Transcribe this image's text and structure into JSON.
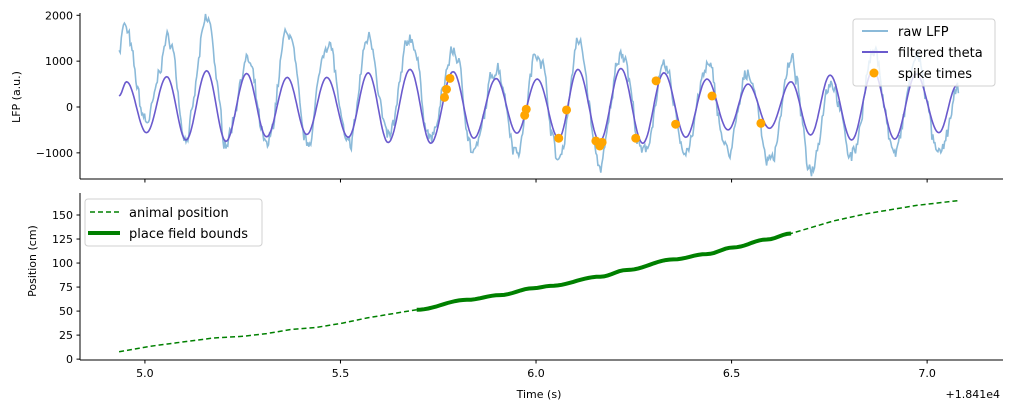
{
  "chart_data": [
    {
      "type": "line",
      "ylabel": "LFP (a.u.)",
      "xlim": [
        4.834,
        7.194
      ],
      "ylim": [
        -1570,
        2050
      ],
      "yticks": [
        -1000,
        0,
        1000,
        2000
      ],
      "ytick_labels": [
        "−1000",
        "0",
        "1000",
        "2000"
      ],
      "xticks": [
        5.0,
        5.5,
        6.0,
        6.5,
        7.0
      ],
      "legend": {
        "placement": "top-right",
        "entries": [
          "raw LFP",
          "filtered theta",
          "spike times"
        ]
      },
      "colors": {
        "raw": "#8bbad9",
        "theta": "#6a5acd",
        "spikes": "#ffa500"
      },
      "series": [
        {
          "name": "filtered theta",
          "extrema": [
            [
              4.934,
              240
            ],
            [
              4.953,
              550
            ],
            [
              5.004,
              -560
            ],
            [
              5.056,
              660
            ],
            [
              5.105,
              -720
            ],
            [
              5.158,
              790
            ],
            [
              5.207,
              -750
            ],
            [
              5.26,
              730
            ],
            [
              5.311,
              -650
            ],
            [
              5.364,
              645
            ],
            [
              5.414,
              -600
            ],
            [
              5.465,
              645
            ],
            [
              5.52,
              -660
            ],
            [
              5.571,
              745
            ],
            [
              5.622,
              -775
            ],
            [
              5.678,
              820
            ],
            [
              5.731,
              -790
            ],
            [
              5.788,
              770
            ],
            [
              5.841,
              -680
            ],
            [
              5.898,
              620
            ],
            [
              5.951,
              -570
            ],
            [
              6.003,
              610
            ],
            [
              6.058,
              -680
            ],
            [
              6.107,
              820
            ],
            [
              6.163,
              -750
            ],
            [
              6.217,
              840
            ],
            [
              6.273,
              -790
            ],
            [
              6.327,
              745
            ],
            [
              6.383,
              -660
            ],
            [
              6.437,
              610
            ],
            [
              6.491,
              -500
            ],
            [
              6.542,
              500
            ],
            [
              6.597,
              -465
            ],
            [
              6.652,
              550
            ],
            [
              6.702,
              -610
            ],
            [
              6.752,
              695
            ],
            [
              6.807,
              -720
            ],
            [
              6.862,
              800
            ],
            [
              6.917,
              -700
            ],
            [
              6.972,
              720
            ],
            [
              7.03,
              -560
            ],
            [
              7.077,
              480
            ]
          ]
        },
        {
          "name": "raw LFP",
          "extrema": [
            [
              4.934,
              1300
            ],
            [
              4.945,
              1750
            ],
            [
              5.004,
              -300
            ],
            [
              5.062,
              1490
            ],
            [
              5.105,
              -650
            ],
            [
              5.16,
              1890
            ],
            [
              5.207,
              -720
            ],
            [
              5.262,
              1000
            ],
            [
              5.311,
              -900
            ],
            [
              5.366,
              1660
            ],
            [
              5.414,
              -800
            ],
            [
              5.467,
              1450
            ],
            [
              5.52,
              -900
            ],
            [
              5.573,
              1560
            ],
            [
              5.622,
              -700
            ],
            [
              5.68,
              1540
            ],
            [
              5.731,
              -700
            ],
            [
              5.79,
              1230
            ],
            [
              5.841,
              -1000
            ],
            [
              5.9,
              900
            ],
            [
              5.951,
              -950
            ],
            [
              6.005,
              1240
            ],
            [
              6.058,
              -1160
            ],
            [
              6.109,
              1390
            ],
            [
              6.163,
              -1280
            ],
            [
              6.219,
              1260
            ],
            [
              6.273,
              -1050
            ],
            [
              6.329,
              800
            ],
            [
              6.383,
              -950
            ],
            [
              6.439,
              870
            ],
            [
              6.491,
              -1000
            ],
            [
              6.544,
              770
            ],
            [
              6.597,
              -1200
            ],
            [
              6.654,
              960
            ],
            [
              6.702,
              -1330
            ],
            [
              6.754,
              590
            ],
            [
              6.807,
              -1050
            ],
            [
              6.864,
              1170
            ],
            [
              6.917,
              -1000
            ],
            [
              6.974,
              1060
            ],
            [
              7.03,
              -1100
            ],
            [
              7.08,
              300
            ]
          ]
        },
        {
          "name": "spike times",
          "type": "scatter",
          "points": [
            [
              5.766,
              210
            ],
            [
              5.771,
              385
            ],
            [
              5.78,
              625
            ],
            [
              5.971,
              -180
            ],
            [
              5.975,
              -50
            ],
            [
              6.058,
              -680
            ],
            [
              6.078,
              -65
            ],
            [
              6.153,
              -740
            ],
            [
              6.163,
              -850
            ],
            [
              6.169,
              -770
            ],
            [
              6.255,
              -680
            ],
            [
              6.307,
              570
            ],
            [
              6.357,
              -375
            ],
            [
              6.45,
              240
            ],
            [
              6.575,
              -355
            ]
          ]
        }
      ]
    },
    {
      "type": "line",
      "xlabel": "Time (s)",
      "ylabel": "Position (cm)",
      "x_offset_label": "+1.841e4",
      "xlim": [
        4.834,
        7.194
      ],
      "ylim": [
        -0.9,
        172.9
      ],
      "yticks": [
        0,
        25,
        50,
        75,
        100,
        125,
        150
      ],
      "xticks": [
        5.0,
        5.5,
        6.0,
        6.5,
        7.0
      ],
      "xtick_labels": [
        "5.0",
        "5.5",
        "6.0",
        "6.5",
        "7.0"
      ],
      "legend": {
        "placement": "top-left",
        "entries": [
          "animal position",
          "place field bounds"
        ]
      },
      "colors": {
        "position": "#008000"
      },
      "place_field": [
        5.695,
        6.652
      ],
      "series": [
        {
          "name": "animal position",
          "points": [
            [
              4.934,
              7.6
            ],
            [
              5.013,
              13.4
            ],
            [
              5.081,
              17
            ],
            [
              5.175,
              22
            ],
            [
              5.251,
              23.8
            ],
            [
              5.311,
              26.6
            ],
            [
              5.371,
              30.7
            ],
            [
              5.439,
              33
            ],
            [
              5.507,
              37.6
            ],
            [
              5.567,
              42.8
            ],
            [
              5.695,
              51.4
            ],
            [
              5.823,
              61.7
            ],
            [
              5.908,
              66.6
            ],
            [
              5.993,
              73.8
            ],
            [
              6.036,
              76.2
            ],
            [
              6.164,
              85.8
            ],
            [
              6.232,
              92.8
            ],
            [
              6.351,
              103.8
            ],
            [
              6.436,
              109.3
            ],
            [
              6.504,
              116.2
            ],
            [
              6.59,
              124.5
            ],
            [
              6.652,
              130.7
            ],
            [
              6.76,
              143.8
            ],
            [
              6.845,
              151.4
            ],
            [
              6.973,
              160
            ],
            [
              7.084,
              165.2
            ]
          ]
        }
      ]
    }
  ]
}
